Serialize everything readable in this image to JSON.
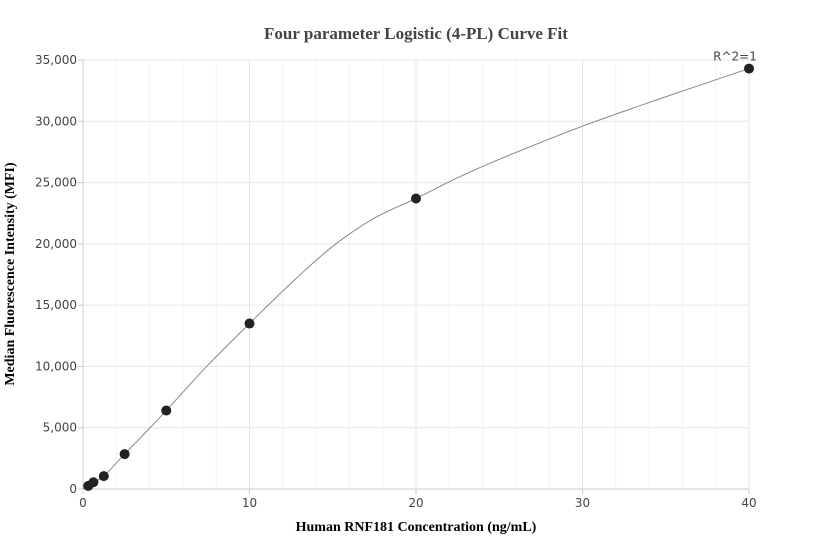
{
  "chart_data": {
    "type": "scatter",
    "title": "Four parameter Logistic (4-PL) Curve Fit",
    "xlabel": "Human RNF181 Concentration (ng/mL)",
    "ylabel": "Median Fluorescence Intensity (MFI)",
    "xlim": [
      0,
      40
    ],
    "ylim": [
      0,
      35000
    ],
    "x_ticks": [
      0,
      10,
      20,
      30,
      40
    ],
    "x_tick_labels": [
      "0",
      "10",
      "20",
      "30",
      "40"
    ],
    "y_ticks": [
      0,
      5000,
      10000,
      15000,
      20000,
      25000,
      30000,
      35000
    ],
    "y_tick_labels": [
      "0",
      "5,000",
      "10,000",
      "15,000",
      "20,000",
      "25,000",
      "30,000",
      "35,000"
    ],
    "grid": true,
    "points": {
      "x": [
        0.313,
        0.625,
        1.25,
        2.5,
        5,
        10,
        20,
        40
      ],
      "y": [
        250,
        550,
        1050,
        2850,
        6400,
        13500,
        23700,
        34300
      ]
    },
    "fit_curve": {
      "x": [
        0,
        0.313,
        0.625,
        1.25,
        2.5,
        3.75,
        5,
        7.5,
        10,
        12.5,
        15,
        17.5,
        20,
        22.5,
        25,
        30,
        35,
        40
      ],
      "y": [
        50,
        250,
        550,
        1050,
        2850,
        4600,
        6400,
        10100,
        13500,
        16800,
        19800,
        22100,
        23700,
        25400,
        26900,
        29600,
        32000,
        34300
      ]
    },
    "annotation": "R^2=1",
    "colors": {
      "points": "#222222",
      "curve": "#888888",
      "grid": "#e6e6e6",
      "axis": "#cccccc"
    }
  }
}
